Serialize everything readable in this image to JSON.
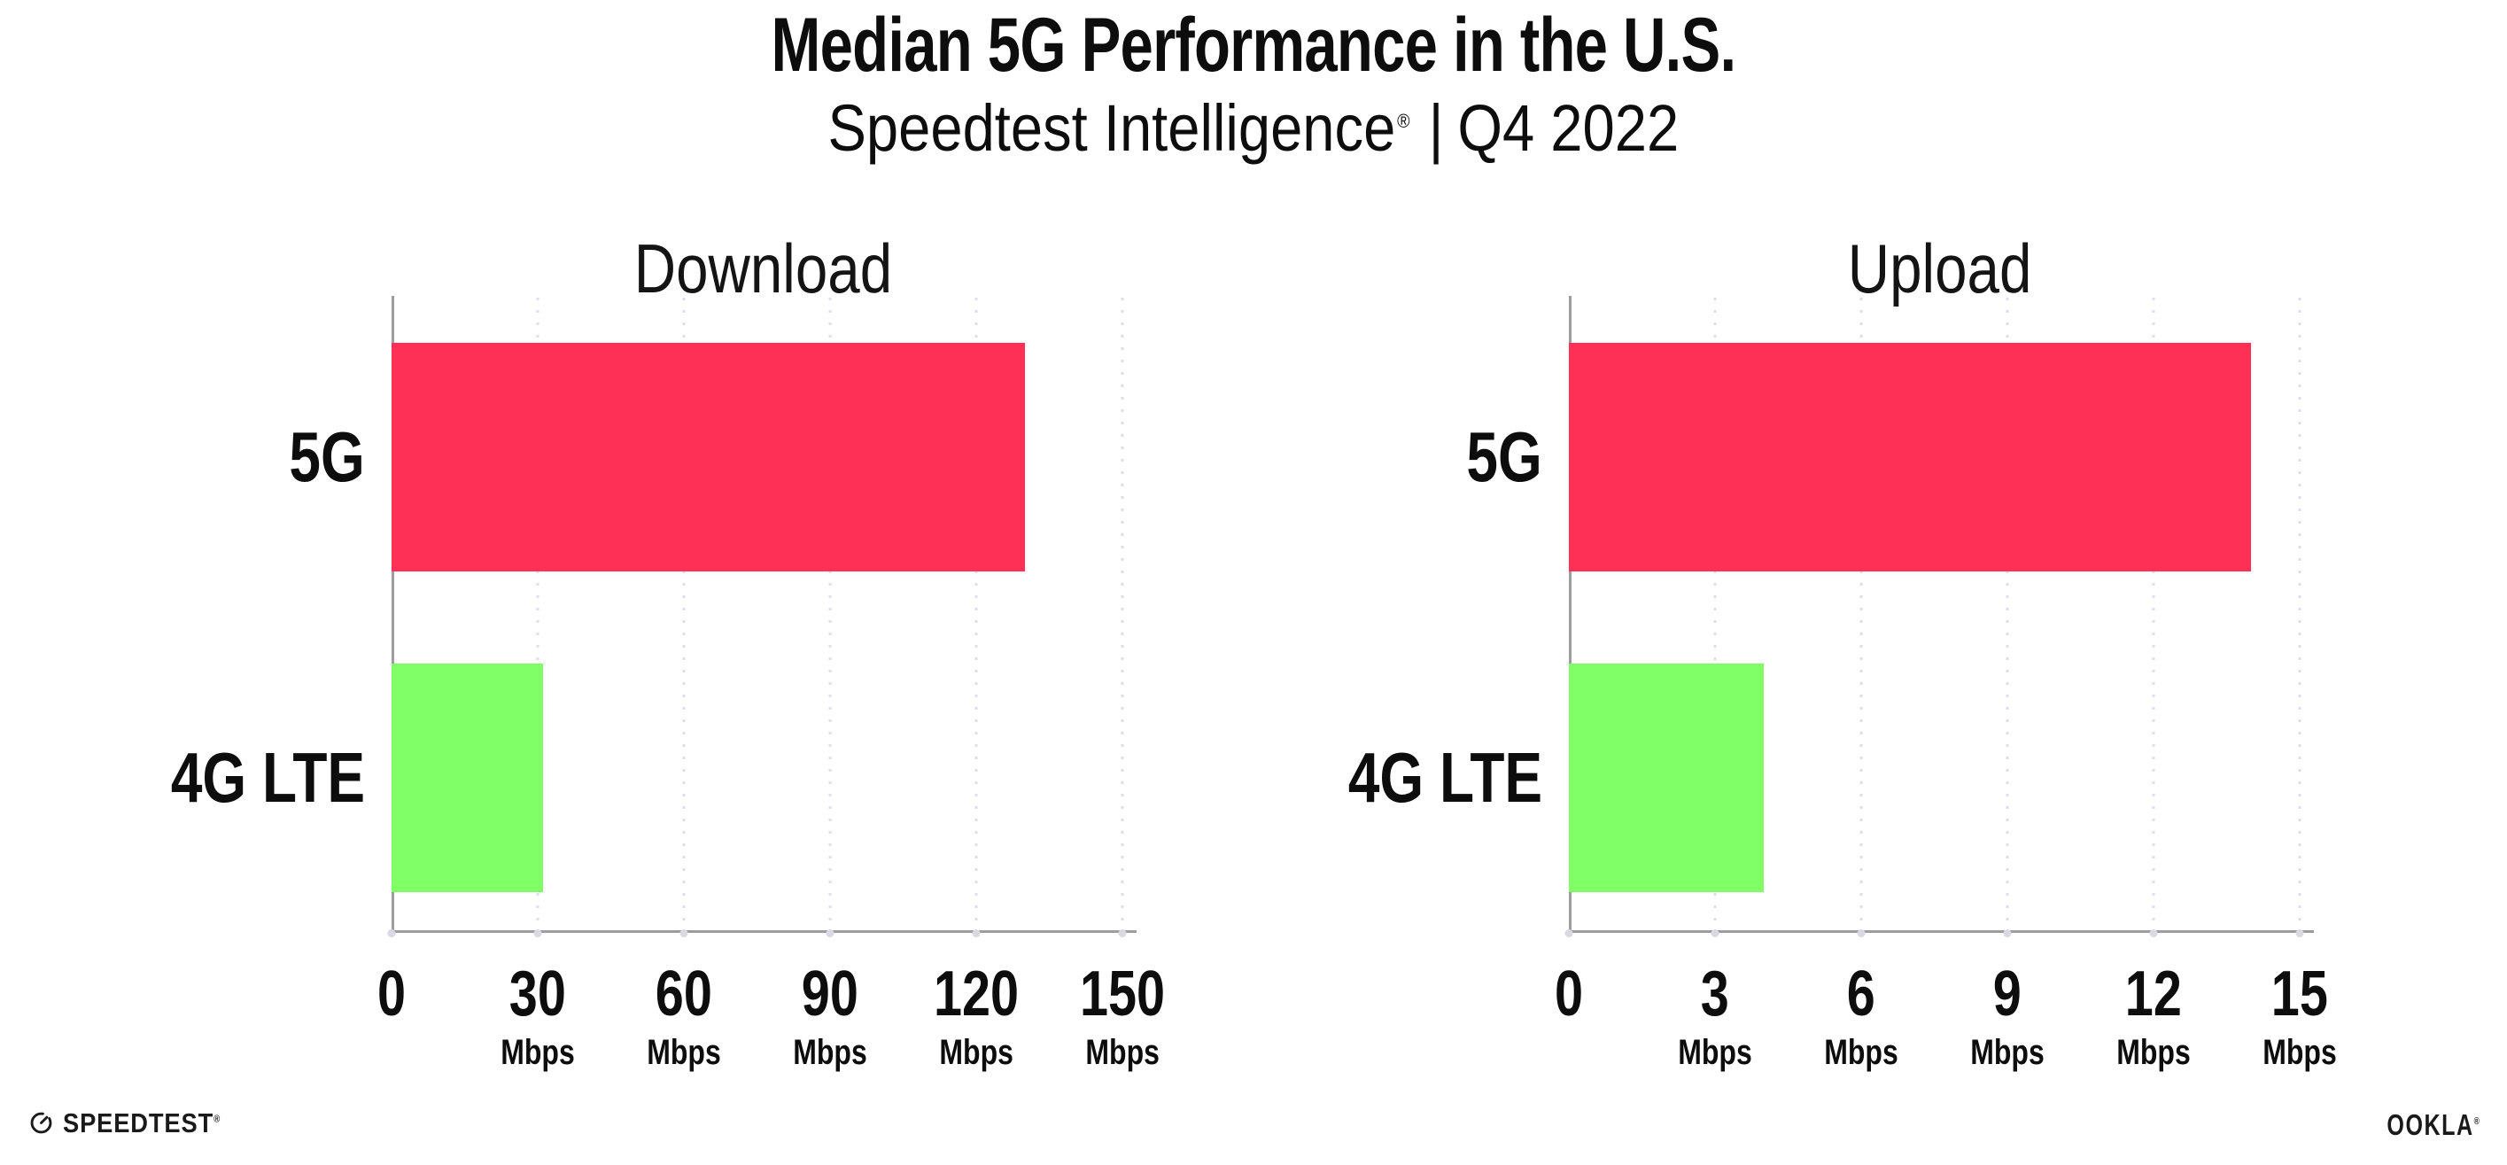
{
  "header": {
    "title": "Median 5G Performance in the U.S.",
    "subtitle_brand": "Speedtest Intelligence",
    "subtitle_reg": "®",
    "subtitle_sep": "|",
    "subtitle_period": "Q4 2022"
  },
  "footer": {
    "speedtest_label": "SPEEDTEST",
    "speedtest_reg": "®",
    "ookla_label": "OOKLA",
    "ookla_reg": "®"
  },
  "colors": {
    "bar_5g": "#ff3056",
    "bar_4g_lte": "#80ff66",
    "axis": "#9d9da1",
    "grid_dots": "#dedde8",
    "text": "#0d0d0d"
  },
  "chart_data": [
    {
      "type": "bar",
      "orientation": "horizontal",
      "title": "Download",
      "categories": [
        "5G",
        "4G LTE"
      ],
      "values": [
        130,
        31
      ],
      "unit": "Mbps",
      "xlim": [
        0,
        150
      ],
      "xticks": [
        0,
        30,
        60,
        90,
        120,
        150
      ],
      "grid": "dotted-vertical",
      "legend": "none",
      "bar_colors": [
        "#ff3056",
        "#80ff66"
      ]
    },
    {
      "type": "bar",
      "orientation": "horizontal",
      "title": "Upload",
      "categories": [
        "5G",
        "4G LTE"
      ],
      "values": [
        14,
        4
      ],
      "unit": "Mbps",
      "xlim": [
        0,
        15
      ],
      "xticks": [
        0,
        3,
        6,
        9,
        12,
        15
      ],
      "grid": "dotted-vertical",
      "legend": "none",
      "bar_colors": [
        "#ff3056",
        "#80ff66"
      ]
    }
  ]
}
